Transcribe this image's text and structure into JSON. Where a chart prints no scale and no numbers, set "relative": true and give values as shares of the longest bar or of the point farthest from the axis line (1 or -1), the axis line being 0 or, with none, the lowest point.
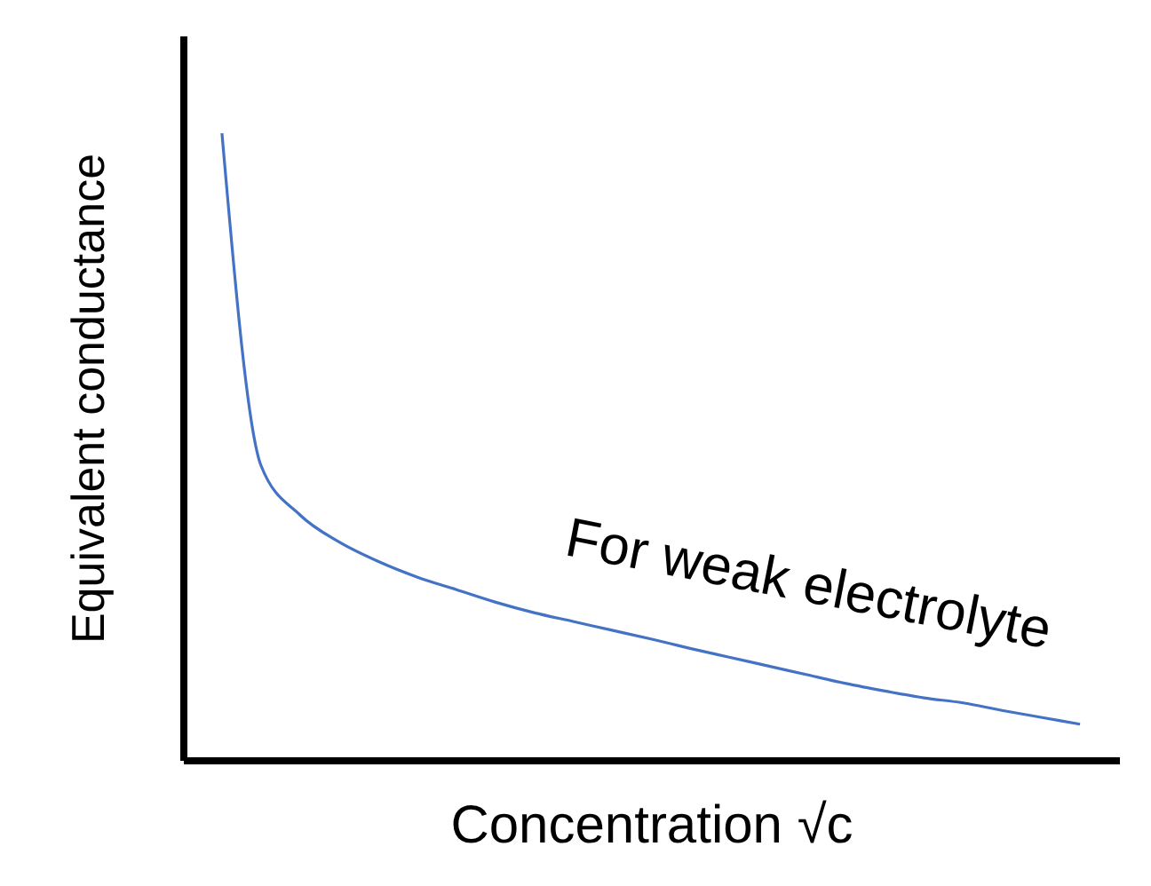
{
  "chart_data": {
    "type": "line",
    "relative": true,
    "xlabel": "Concentration √c",
    "ylabel": "Equivalent conductance",
    "tick_labels": false,
    "grid": false,
    "marker": "none",
    "line_style": "solid",
    "categories": [
      null,
      null,
      null,
      null,
      null,
      null,
      null,
      null,
      null,
      null,
      null,
      null,
      null,
      null,
      null,
      null,
      null,
      null,
      null,
      null,
      null,
      null,
      null
    ],
    "series": [
      {
        "color": "#4472c4",
        "values": [
          1.0,
          0.47,
          0.391,
          0.348,
          0.317,
          0.292,
          0.272,
          0.252,
          0.235,
          0.221,
          0.207,
          0.193,
          0.178,
          0.164,
          0.15,
          0.136,
          0.122,
          0.11,
          0.099,
          0.091,
          0.079,
          0.068,
          0.057
        ]
      }
    ],
    "annotations": [
      "For weak electrolyte"
    ]
  }
}
